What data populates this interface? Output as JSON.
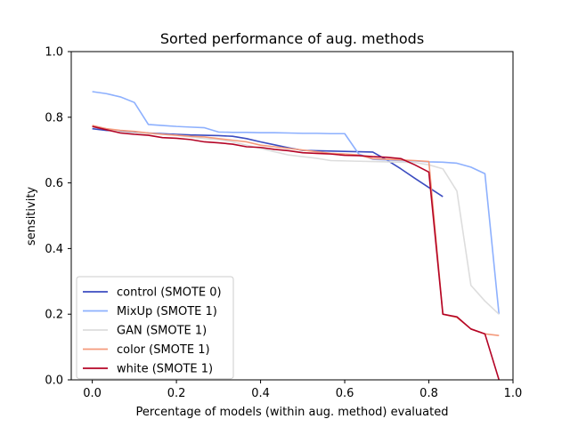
{
  "chart_data": {
    "type": "line",
    "title": "Sorted performance of aug. methods",
    "xlabel": "Percentage of models (within aug. method) evaluated",
    "ylabel": "sensitivity",
    "xlim": [
      -0.05,
      1.0
    ],
    "ylim": [
      0.0,
      1.0
    ],
    "xticks": [
      "0.0",
      "0.2",
      "0.4",
      "0.6",
      "0.8",
      "1.0"
    ],
    "yticks": [
      "0.0",
      "0.2",
      "0.4",
      "0.6",
      "0.8",
      "1.0"
    ],
    "xtick_values": [
      0.0,
      0.2,
      0.4,
      0.6,
      0.8,
      1.0
    ],
    "ytick_values": [
      0.0,
      0.2,
      0.4,
      0.6,
      0.8,
      1.0
    ],
    "grid": false,
    "legend_position": "lower-left",
    "series": [
      {
        "name": "control (SMOTE 0)",
        "color": "#3b4cc0",
        "x": [
          0.0,
          0.0333,
          0.0667,
          0.1,
          0.1333,
          0.1667,
          0.2,
          0.2333,
          0.2667,
          0.3,
          0.3333,
          0.3667,
          0.4,
          0.4333,
          0.4667,
          0.5,
          0.5333,
          0.5667,
          0.6,
          0.6333,
          0.6667,
          0.7,
          0.7333,
          0.7667,
          0.8,
          0.8333
        ],
        "y": [
          0.765,
          0.76,
          0.758,
          0.755,
          0.752,
          0.75,
          0.748,
          0.746,
          0.745,
          0.744,
          0.742,
          0.735,
          0.725,
          0.716,
          0.707,
          0.699,
          0.698,
          0.697,
          0.696,
          0.695,
          0.694,
          0.67,
          0.643,
          0.614,
          0.586,
          0.558
        ]
      },
      {
        "name": "MixUp (SMOTE 1)",
        "color": "#8db0fe",
        "x": [
          0.0,
          0.0333,
          0.0667,
          0.1,
          0.1333,
          0.1667,
          0.2,
          0.2333,
          0.2667,
          0.3,
          0.3333,
          0.3667,
          0.4,
          0.4333,
          0.4667,
          0.5,
          0.5333,
          0.5667,
          0.6,
          0.6333,
          0.6667,
          0.7,
          0.7333,
          0.7667,
          0.8,
          0.8333,
          0.8667,
          0.9,
          0.9333,
          0.9667
        ],
        "y": [
          0.878,
          0.872,
          0.862,
          0.845,
          0.778,
          0.775,
          0.772,
          0.77,
          0.768,
          0.755,
          0.754,
          0.754,
          0.753,
          0.753,
          0.752,
          0.751,
          0.751,
          0.75,
          0.75,
          0.688,
          0.672,
          0.67,
          0.668,
          0.667,
          0.664,
          0.663,
          0.66,
          0.648,
          0.628,
          0.2
        ]
      },
      {
        "name": "GAN (SMOTE 1)",
        "color": "#dddddd",
        "x": [
          0.0,
          0.0333,
          0.0667,
          0.1,
          0.1333,
          0.1667,
          0.2,
          0.2333,
          0.2667,
          0.3,
          0.3333,
          0.3667,
          0.4,
          0.4333,
          0.4667,
          0.5,
          0.5333,
          0.5667,
          0.6,
          0.6333,
          0.6667,
          0.7,
          0.7333,
          0.7667,
          0.8,
          0.8333,
          0.8667,
          0.9,
          0.9333,
          0.9667
        ],
        "y": [
          0.77,
          0.765,
          0.755,
          0.752,
          0.75,
          0.748,
          0.745,
          0.74,
          0.735,
          0.732,
          0.725,
          0.715,
          0.705,
          0.695,
          0.685,
          0.68,
          0.675,
          0.668,
          0.667,
          0.666,
          0.665,
          0.664,
          0.663,
          0.662,
          0.655,
          0.643,
          0.575,
          0.288,
          0.24,
          0.2
        ]
      },
      {
        "name": "color (SMOTE 1)",
        "color": "#f49a7b",
        "x": [
          0.0,
          0.0333,
          0.0667,
          0.1,
          0.1333,
          0.1667,
          0.2,
          0.2333,
          0.2667,
          0.3,
          0.3333,
          0.3667,
          0.4,
          0.4333,
          0.4667,
          0.5,
          0.5333,
          0.5667,
          0.6,
          0.6333,
          0.6667,
          0.7,
          0.7333,
          0.7667,
          0.8,
          0.8333,
          0.8667,
          0.9,
          0.9333,
          0.9667
        ],
        "y": [
          0.775,
          0.765,
          0.76,
          0.757,
          0.752,
          0.748,
          0.745,
          0.742,
          0.74,
          0.735,
          0.73,
          0.725,
          0.715,
          0.71,
          0.705,
          0.7,
          0.695,
          0.69,
          0.688,
          0.685,
          0.674,
          0.672,
          0.67,
          0.668,
          0.665,
          0.2,
          0.19,
          0.155,
          0.14,
          0.135
        ]
      },
      {
        "name": "white (SMOTE 1)",
        "color": "#b40426",
        "x": [
          0.0,
          0.0333,
          0.0667,
          0.1,
          0.1333,
          0.1667,
          0.2,
          0.2333,
          0.2667,
          0.3,
          0.3333,
          0.3667,
          0.4,
          0.4333,
          0.4667,
          0.5,
          0.5333,
          0.5667,
          0.6,
          0.6333,
          0.6667,
          0.7,
          0.7333,
          0.7667,
          0.8,
          0.8333,
          0.8667,
          0.9,
          0.9333,
          0.9667
        ],
        "y": [
          0.772,
          0.762,
          0.752,
          0.748,
          0.745,
          0.738,
          0.736,
          0.732,
          0.725,
          0.722,
          0.718,
          0.71,
          0.708,
          0.702,
          0.698,
          0.692,
          0.69,
          0.688,
          0.684,
          0.683,
          0.68,
          0.678,
          0.674,
          0.655,
          0.633,
          0.2,
          0.192,
          0.155,
          0.14,
          0.0
        ]
      }
    ]
  }
}
